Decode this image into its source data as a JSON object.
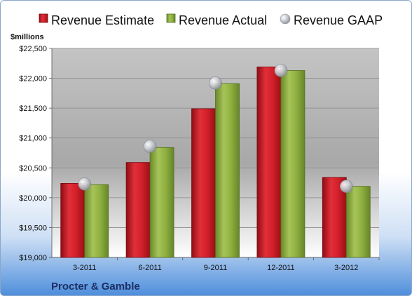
{
  "chart_data": {
    "type": "bar",
    "ylabel": "$millions",
    "company": "Procter & Gamble",
    "categories": [
      "3-2011",
      "6-2011",
      "9-2011",
      "12-2011",
      "3-2012"
    ],
    "ylim": [
      19000,
      22500
    ],
    "yticks": [
      19000,
      19500,
      20000,
      20500,
      21000,
      21500,
      22000,
      22500
    ],
    "ytick_labels": [
      "$19,000",
      "$19,500",
      "$20,000",
      "$20,500",
      "$21,000",
      "$21,500",
      "$22,000",
      "$22,500"
    ],
    "legend_placement": "top",
    "grid": true,
    "series": [
      {
        "name": "Revenue Estimate",
        "kind": "bar",
        "color": "#d3202a",
        "values": [
          20240,
          20590,
          21490,
          22190,
          20340
        ]
      },
      {
        "name": "Revenue Actual",
        "kind": "bar",
        "color": "#8fb03f",
        "values": [
          20220,
          20840,
          21910,
          22130,
          20190
        ]
      },
      {
        "name": "Revenue GAAP",
        "kind": "marker",
        "color": "#b8bcc4",
        "values": [
          20230,
          20860,
          21920,
          22130,
          20190
        ]
      }
    ]
  }
}
